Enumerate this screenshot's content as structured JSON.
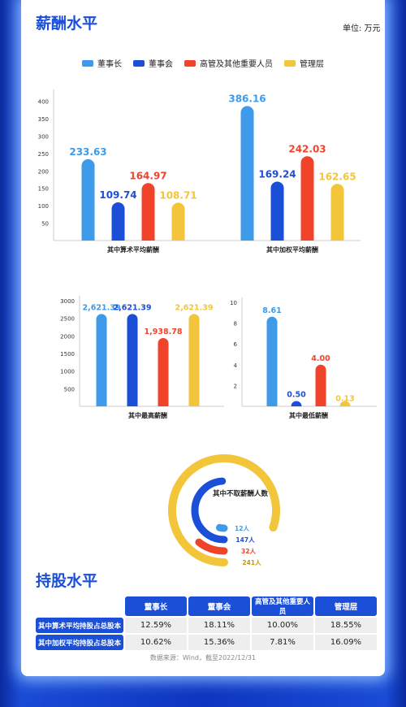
{
  "salary": {
    "title": "薪酬水平",
    "unit": "单位: 万元"
  },
  "legend": [
    {
      "name": "董事长",
      "color": "#3d9be9"
    },
    {
      "name": "董事会",
      "color": "#1b4fd8"
    },
    {
      "name": "高管及其他重要人员",
      "color": "#f0432a"
    },
    {
      "name": "管理层",
      "color": "#f3c53a"
    }
  ],
  "chart_data": [
    {
      "type": "bar",
      "categories": [
        "其中算术平均薪酬",
        "其中加权平均薪酬"
      ],
      "yticks": [
        50,
        100,
        150,
        200,
        250,
        300,
        350,
        400
      ],
      "ylim": [
        0,
        420
      ],
      "series": [
        {
          "name": "董事长",
          "values": [
            233.63,
            386.16
          ],
          "labels": [
            "233.63",
            "386.16"
          ]
        },
        {
          "name": "董事会",
          "values": [
            109.74,
            169.24
          ],
          "labels": [
            "109.74",
            "169.24"
          ]
        },
        {
          "name": "高管及其他重要人员",
          "values": [
            164.97,
            242.03
          ],
          "labels": [
            "164.97",
            "242.03"
          ]
        },
        {
          "name": "管理层",
          "values": [
            108.71,
            162.65
          ],
          "labels": [
            "108.71",
            "162.65"
          ]
        }
      ]
    },
    {
      "type": "bar",
      "categories": [
        "其中最高薪酬"
      ],
      "yticks": [
        500,
        1000,
        1500,
        2000,
        2500,
        3000
      ],
      "ylim": [
        0,
        3000
      ],
      "series": [
        {
          "name": "董事长",
          "values": [
            2621.39
          ],
          "labels": [
            "2,621.39"
          ]
        },
        {
          "name": "董事会",
          "values": [
            2621.39
          ],
          "labels": [
            "2,621.39"
          ]
        },
        {
          "name": "高管及其他重要人员",
          "values": [
            1938.78
          ],
          "labels": [
            "1,938.78"
          ]
        },
        {
          "name": "管理层",
          "values": [
            2621.39
          ],
          "labels": [
            "2,621.39"
          ]
        }
      ]
    },
    {
      "type": "bar",
      "categories": [
        "其中最低薪酬"
      ],
      "yticks": [
        2,
        4,
        6,
        8,
        10
      ],
      "ylim": [
        0,
        10
      ],
      "series": [
        {
          "name": "董事长",
          "values": [
            8.61
          ],
          "labels": [
            "8.61"
          ]
        },
        {
          "name": "董事会",
          "values": [
            0.5
          ],
          "labels": [
            "0.50"
          ]
        },
        {
          "name": "高管及其他重要人员",
          "values": [
            4.0
          ],
          "labels": [
            "4.00"
          ]
        },
        {
          "name": "管理层",
          "values": [
            0.13
          ],
          "labels": [
            "0.13"
          ]
        }
      ]
    },
    {
      "type": "radial-bar",
      "title": "其中不取薪酬人数",
      "max": 300,
      "items": [
        {
          "name": "董事长",
          "value": 12,
          "label": "12人"
        },
        {
          "name": "董事会",
          "value": 147,
          "label": "147人"
        },
        {
          "name": "高管及其他重要人员",
          "value": 32,
          "label": "32人"
        },
        {
          "name": "管理层",
          "value": 241,
          "label": "241人"
        }
      ]
    }
  ],
  "holding": {
    "title": "持股水平",
    "columns": [
      "董事长",
      "董事会",
      "高管及其他重要人员",
      "管理层"
    ],
    "rows": [
      {
        "label": "其中算术平均持股占总股本",
        "values": [
          "12.59%",
          "18.11%",
          "10.00%",
          "18.55%"
        ]
      },
      {
        "label": "其中加权平均持股占总股本",
        "values": [
          "10.62%",
          "15.36%",
          "7.81%",
          "16.09%"
        ]
      }
    ]
  },
  "source": "数据来源：Wind，截至2022/12/31"
}
